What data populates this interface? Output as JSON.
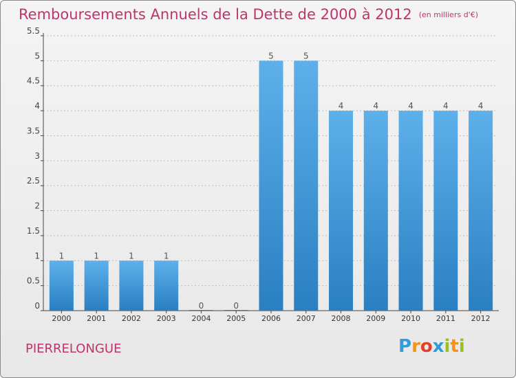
{
  "title": "Remboursements Annuels de la Dette de 2000 à 2012",
  "unit": "(en milliers d'€)",
  "commune": "PIERRELONGUE",
  "logo": {
    "text": "Proxiti",
    "letters": [
      {
        "ch": "P",
        "color": "#2f9bd8"
      },
      {
        "ch": "r",
        "color": "#f29417"
      },
      {
        "ch": "o",
        "color": "#e2402b"
      },
      {
        "ch": "x",
        "color": "#2f9bd8"
      },
      {
        "ch": "i",
        "color": "#96c11f"
      },
      {
        "ch": "t",
        "color": "#f29417"
      },
      {
        "ch": "i",
        "color": "#96c11f"
      }
    ]
  },
  "colors": {
    "title": "#c0336a",
    "bar_top": "#5db0ea",
    "bar_bottom": "#2a7fc2",
    "axis": "#444444",
    "grid": "#bbbbbb"
  },
  "chart_data": {
    "type": "bar",
    "categories": [
      "2000",
      "2001",
      "2002",
      "2003",
      "2004",
      "2005",
      "2006",
      "2007",
      "2008",
      "2009",
      "2010",
      "2011",
      "2012"
    ],
    "values": [
      1,
      1,
      1,
      1,
      0,
      0,
      5,
      5,
      4,
      4,
      4,
      4,
      4
    ],
    "value_labels": [
      "1",
      "1",
      "1",
      "1",
      "0",
      "0",
      "5",
      "5",
      "4",
      "4",
      "4",
      "4",
      "4"
    ],
    "y_ticks": [
      "0",
      "0.5",
      "1",
      "1.5",
      "2",
      "2.5",
      "3",
      "3.5",
      "4",
      "4.5",
      "5",
      "5.5"
    ],
    "ylim": [
      0,
      5.5
    ],
    "grid": true
  }
}
